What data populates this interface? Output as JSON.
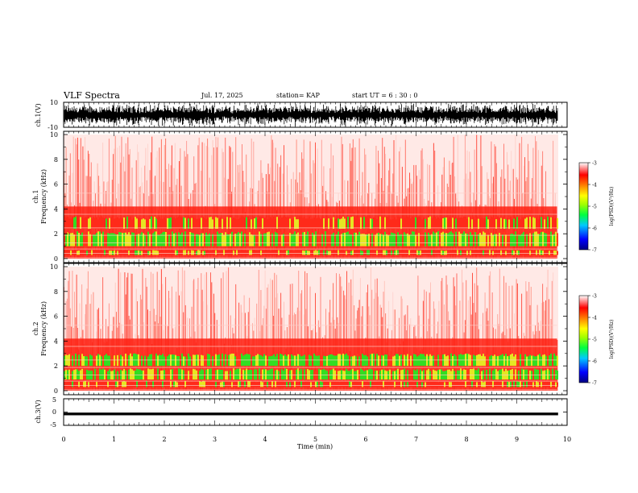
{
  "header": {
    "title": "VLF Spectra",
    "date": "Jul. 17, 2025",
    "station": "station= KAP",
    "start": "start  UT =   6  : 30 : 0"
  },
  "colors": {
    "spectrogram_base": "#ff2a1a",
    "band_green": "#33dd22",
    "band_yellow": "#e6e622",
    "colorbar": [
      "#000080",
      "#0000ff",
      "#00c8ff",
      "#00ff40",
      "#a0ff00",
      "#ffff00",
      "#ff8000",
      "#ff0000",
      "#ffffff"
    ]
  },
  "chart_data": [
    {
      "type": "line",
      "name": "ch1-waveform",
      "ylabel": "ch.1(V)",
      "ylim": [
        -10,
        10
      ],
      "yticks": [
        "10",
        "-10"
      ],
      "xlim": [
        0,
        10
      ],
      "description_of_signal": "dense noise waveform",
      "amplitude_range_V": [
        -10,
        10
      ]
    },
    {
      "type": "heatmap",
      "name": "ch1-spectrogram",
      "ylabel_top": "ch.1",
      "ylabel": "Frequency (kHz)",
      "ylim": [
        0,
        10
      ],
      "yticks": [
        "0",
        "2",
        "4",
        "6",
        "8",
        "10"
      ],
      "xlim": [
        0,
        9.8
      ],
      "bands_kHz": [
        {
          "range": [
            0.3,
            0.7
          ],
          "level": "high"
        },
        {
          "range": [
            1.0,
            2.2
          ],
          "level": "very-high"
        },
        {
          "range": [
            2.4,
            3.4
          ],
          "level": "high"
        }
      ],
      "colorbar": {
        "label": "log(PSD)(V²/Hz)",
        "ticks": [
          "-3",
          "-4",
          "-5",
          "-6",
          "-7"
        ],
        "range": [
          -7,
          -3
        ]
      }
    },
    {
      "type": "heatmap",
      "name": "ch2-spectrogram",
      "ylabel_top": "ch.2",
      "ylabel": "Frequency (kHz)",
      "ylim": [
        0,
        10
      ],
      "yticks": [
        "0",
        "2",
        "4",
        "6",
        "8",
        "10"
      ],
      "xlim": [
        0,
        9.8
      ],
      "bands_kHz": [
        {
          "range": [
            0.3,
            0.8
          ],
          "level": "high"
        },
        {
          "range": [
            0.9,
            1.8
          ],
          "level": "very-high"
        },
        {
          "range": [
            2.0,
            3.0
          ],
          "level": "very-high"
        }
      ],
      "colorbar": {
        "label": "log(PSD)(V²/Hz)",
        "ticks": [
          "-3",
          "-4",
          "-5",
          "-6",
          "-7"
        ],
        "range": [
          -7,
          -3
        ]
      }
    },
    {
      "type": "line",
      "name": "ch3-waveform",
      "ylabel": "ch.3(V)",
      "ylim": [
        -5,
        5
      ],
      "yticks": [
        "5",
        "0",
        "-5"
      ],
      "xlim": [
        0,
        10
      ],
      "amplitude_range_V": [
        -1.2,
        -0.2
      ]
    }
  ],
  "xaxis": {
    "label": "Time (min)",
    "ticks": [
      "0",
      "1",
      "2",
      "3",
      "4",
      "5",
      "6",
      "7",
      "8",
      "9",
      "10"
    ],
    "range": [
      0,
      10
    ]
  }
}
